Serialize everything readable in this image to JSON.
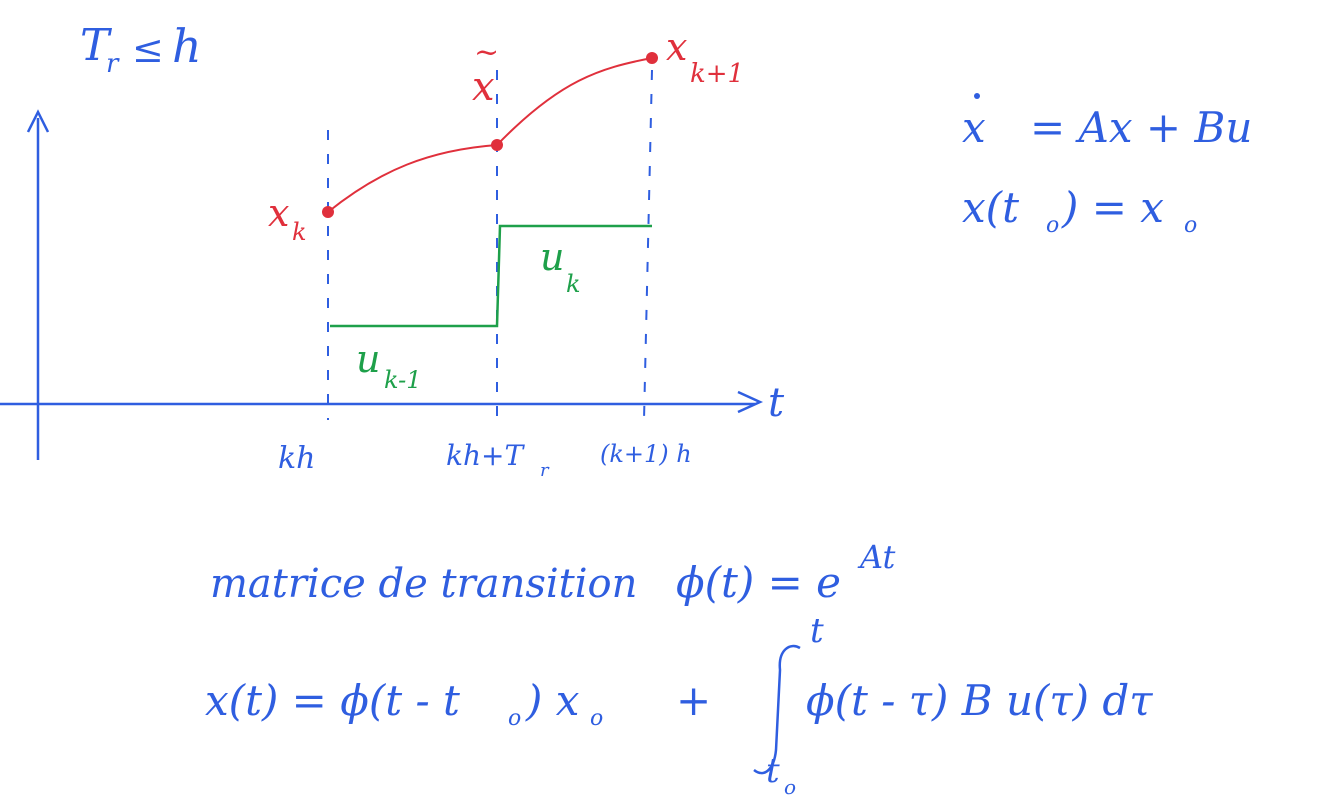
{
  "condition": {
    "lhs": "T",
    "lhs_sub": "r",
    "rel": "≤",
    "rhs": "h"
  },
  "time_axis_label": "t",
  "ticks": {
    "kh": "kh",
    "kh_plus_tr": "kh+T",
    "kh_plus_tr_sub": "r",
    "k1h": "(k+1) h"
  },
  "state_labels": {
    "xk": "x",
    "xk_sub": "k",
    "xtilde": "x",
    "xtilde_mark": "~",
    "xk1": "x",
    "xk1_sub": "k+1"
  },
  "input_labels": {
    "uk_1": "u",
    "uk_1_sub": "k-1",
    "uk": "u",
    "uk_sub": "k"
  },
  "equations": {
    "state_eq_lhs": "x",
    "state_eq_rhs": "= Ax + Bu",
    "initial": "x(t",
    "initial_sub": "o",
    "initial_rest": ") = x",
    "initial_sub2": "o"
  },
  "transition": {
    "text": "matrice de transition",
    "phi": "ϕ(t) = e",
    "exp": "At"
  },
  "solution": {
    "lhs": "x(t) = ϕ(t - t",
    "lhs_sub": "o",
    "lhs_rest": ") x",
    "lhs_sub2": "o",
    "plus": "+",
    "integral_upper": "t",
    "integral_lower": "t",
    "integral_lower_sub": "o",
    "integrand": "ϕ(t - τ) B u(τ) dτ"
  },
  "colors": {
    "ink_blue": "#2f5ee0",
    "ink_red": "#e0303c",
    "ink_green": "#1ea04a"
  }
}
